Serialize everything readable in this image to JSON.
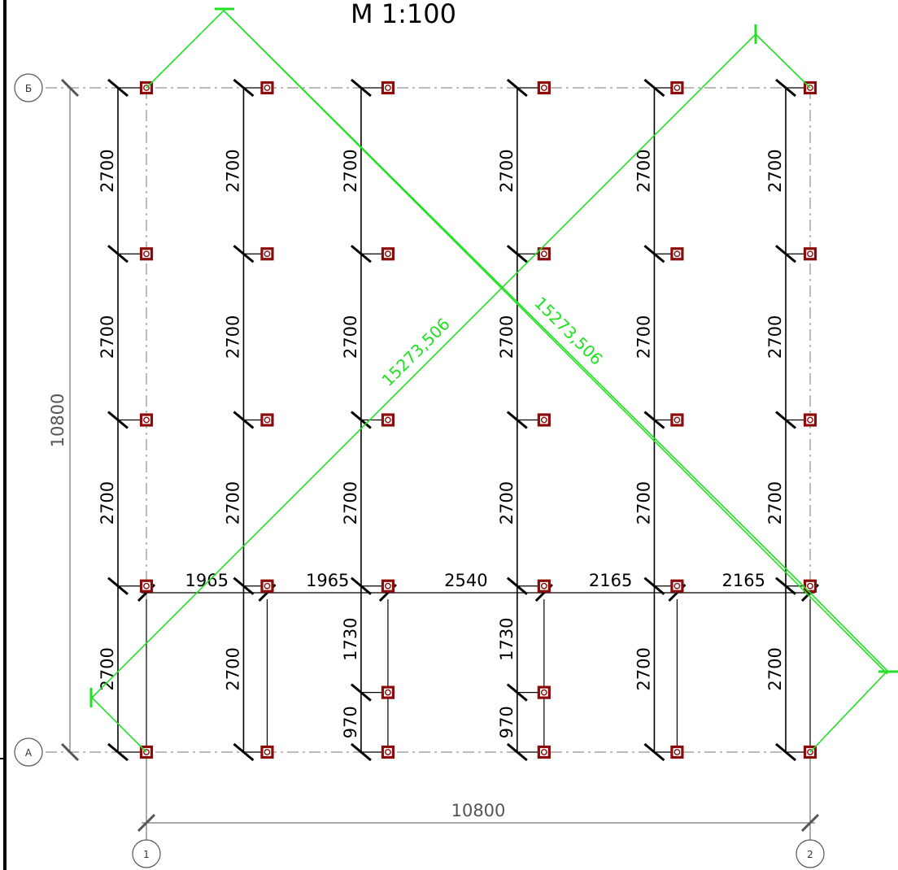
{
  "title": "М 1:100",
  "axes": {
    "rows": [
      {
        "label": "Б"
      },
      {
        "label": "А"
      }
    ],
    "columns": [
      {
        "label": "1"
      },
      {
        "label": "2"
      }
    ]
  },
  "overall_vertical_dimension": "10800",
  "overall_horizontal_dimension": "10800",
  "bottom_dimensions": [
    "1965",
    "1965",
    "2540",
    "2165",
    "2165"
  ],
  "column_lines": [
    {
      "segments": [
        "2700",
        "2700",
        "2700",
        "2700"
      ]
    },
    {
      "segments": [
        "2700",
        "2700",
        "2700",
        "2700"
      ]
    },
    {
      "segments": [
        "2700",
        "2700",
        "2700",
        "1730",
        "970"
      ]
    },
    {
      "segments": [
        "2700",
        "2700",
        "2700",
        "1730",
        "970"
      ]
    },
    {
      "segments": [
        "2700",
        "2700",
        "2700",
        "2700"
      ]
    },
    {
      "segments": [
        "2700",
        "2700",
        "2700",
        "2700"
      ]
    }
  ],
  "diagonals": [
    {
      "label": "15273,506"
    },
    {
      "label": "15273,506"
    }
  ],
  "colors": {
    "dimension_lines": "#000000",
    "axis_lines": "#777777",
    "diagonal_check": "#22e022",
    "column_markers": "#8b0a0a"
  }
}
